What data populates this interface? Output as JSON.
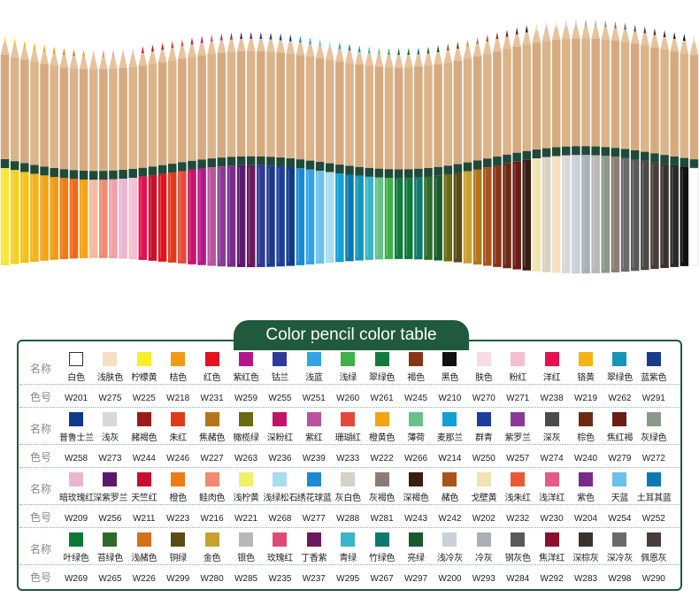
{
  "title": "Color pencil color table",
  "labels": {
    "name": "名称",
    "code": "色号"
  },
  "rows": [
    [
      {
        "name": "白色",
        "code": "W201",
        "color": "#ffffff"
      },
      {
        "name": "浅肤色",
        "code": "W275",
        "color": "#f7dfc0"
      },
      {
        "name": "柠檬黄",
        "code": "W225",
        "color": "#f7ee2a"
      },
      {
        "name": "桔色",
        "code": "W218",
        "color": "#f39a13"
      },
      {
        "name": "红色",
        "code": "W231",
        "color": "#e6101e"
      },
      {
        "name": "紫红色",
        "code": "W259",
        "color": "#b5178a"
      },
      {
        "name": "钴兰",
        "code": "W255",
        "color": "#2d3a9a"
      },
      {
        "name": "浅蓝",
        "code": "W251",
        "color": "#33a3e6"
      },
      {
        "name": "浅绿",
        "code": "W260",
        "color": "#3fb04a"
      },
      {
        "name": "翠绿色",
        "code": "W261",
        "color": "#137a3e"
      },
      {
        "name": "褐色",
        "code": "W245",
        "color": "#8a3417"
      },
      {
        "name": "黑色",
        "code": "W210",
        "color": "#111111"
      },
      {
        "name": "肤色",
        "code": "W270",
        "color": "#f7dce3"
      },
      {
        "name": "粉红",
        "code": "W271",
        "color": "#f5bfd0"
      },
      {
        "name": "洋红",
        "code": "W238",
        "color": "#e4104f"
      },
      {
        "name": "铬黄",
        "code": "W219",
        "color": "#f6b414"
      },
      {
        "name": "翠绿色",
        "code": "W262",
        "color": "#1496b8"
      },
      {
        "name": "蓝紫色",
        "code": "W291",
        "color": "#1c3a8c"
      }
    ],
    [
      {
        "name": "普鲁士兰",
        "code": "W258",
        "color": "#0f3a8a"
      },
      {
        "name": "浅灰",
        "code": "W273",
        "color": "#d8d8d8"
      },
      {
        "name": "赭褐色",
        "code": "W244",
        "color": "#9a1a1a"
      },
      {
        "name": "朱红",
        "code": "W246",
        "color": "#e03a18"
      },
      {
        "name": "焦赭色",
        "code": "W227",
        "color": "#b4761a"
      },
      {
        "name": "橄榄绿",
        "code": "W263",
        "color": "#6a6a12"
      },
      {
        "name": "深粉红",
        "code": "W236",
        "color": "#c41468"
      },
      {
        "name": "紫红",
        "code": "W239",
        "color": "#b8549e"
      },
      {
        "name": "珊瑚红",
        "code": "W233",
        "color": "#e5483a"
      },
      {
        "name": "橙黄色",
        "code": "W222",
        "color": "#f5a316"
      },
      {
        "name": "薄荷",
        "code": "W266",
        "color": "#69c08a"
      },
      {
        "name": "麦那兰",
        "code": "W214",
        "color": "#149fd6"
      },
      {
        "name": "群青",
        "code": "W250",
        "color": "#1d3f9a"
      },
      {
        "name": "紫罗兰",
        "code": "W257",
        "color": "#8a3c94"
      },
      {
        "name": "深灰",
        "code": "W274",
        "color": "#4a4a4a"
      },
      {
        "name": "棕色",
        "code": "W240",
        "color": "#6b2b12"
      },
      {
        "name": "焦红褐",
        "code": "W279",
        "color": "#6b1c14"
      },
      {
        "name": "灰绿色",
        "code": "W272",
        "color": "#8a9a8a"
      }
    ],
    [
      {
        "name": "暗玫瑰红",
        "code": "W209",
        "color": "#eab6cf"
      },
      {
        "name": "深紫罗兰",
        "code": "W256",
        "color": "#5a1a6e"
      },
      {
        "name": "天竺红",
        "code": "W211",
        "color": "#c8102e"
      },
      {
        "name": "橙色",
        "code": "W223",
        "color": "#f07a14"
      },
      {
        "name": "鲑肉色",
        "code": "W216",
        "color": "#f08a72"
      },
      {
        "name": "浅柠黄",
        "code": "W221",
        "color": "#f2f06a"
      },
      {
        "name": "浅绿松石",
        "code": "W268",
        "color": "#a8dcef"
      },
      {
        "name": "绣花球蓝",
        "code": "W277",
        "color": "#1c8ad0"
      },
      {
        "name": "灰白色",
        "code": "W288",
        "color": "#d6d2c8"
      },
      {
        "name": "灰褐色",
        "code": "W281",
        "color": "#8a7e74"
      },
      {
        "name": "深褐色",
        "code": "W243",
        "color": "#3a1c12"
      },
      {
        "name": "赭色",
        "code": "W242",
        "color": "#a8541a"
      },
      {
        "name": "戈壁黄",
        "code": "W202",
        "color": "#f0e4b2"
      },
      {
        "name": "浅朱红",
        "code": "W232",
        "color": "#ea5a32"
      },
      {
        "name": "浅洋红",
        "code": "W230",
        "color": "#e45a8a"
      },
      {
        "name": "紫色",
        "code": "W204",
        "color": "#7a2a8a"
      },
      {
        "name": "天蓝",
        "code": "W254",
        "color": "#6ac2ea"
      },
      {
        "name": "土耳其蓝",
        "code": "W252",
        "color": "#0a7ab0"
      }
    ],
    [
      {
        "name": "叶绿色",
        "code": "W269",
        "color": "#0e7a3a"
      },
      {
        "name": "苔绿色",
        "code": "W265",
        "color": "#2e6a2a"
      },
      {
        "name": "浅赭色",
        "code": "W226",
        "color": "#d4701a"
      },
      {
        "name": "铜绿",
        "code": "W299",
        "color": "#5a4a14"
      },
      {
        "name": "金色",
        "code": "W280",
        "color": "#c8a032"
      },
      {
        "name": "银色",
        "code": "W285",
        "color": "#b8b8b8"
      },
      {
        "name": "玫瑰红",
        "code": "W235",
        "color": "#e04a74"
      },
      {
        "name": "丁香紫",
        "code": "W237",
        "color": "#6a1a5a"
      },
      {
        "name": "青绿",
        "code": "W295",
        "color": "#3ab4c8"
      },
      {
        "name": "竹绿色",
        "code": "W267",
        "color": "#0e7a6a"
      },
      {
        "name": "亮绿",
        "code": "W297",
        "color": "#1a5a2a"
      },
      {
        "name": "浅冷灰",
        "code": "W200",
        "color": "#c8d0d8"
      },
      {
        "name": "冷灰",
        "code": "W293",
        "color": "#a8b0b8"
      },
      {
        "name": "钢灰色",
        "code": "W284",
        "color": "#5a5a5a"
      },
      {
        "name": "焦洋红",
        "code": "W292",
        "color": "#8a1030"
      },
      {
        "name": "深棕灰",
        "code": "W283",
        "color": "#3a3230"
      },
      {
        "name": "深冷灰",
        "code": "W298",
        "color": "#6a6a6e"
      },
      {
        "name": "佩恩灰",
        "code": "W290",
        "color": "#4a3c38"
      }
    ]
  ],
  "pencil_colors": [
    "#f7e63a",
    "#f5d020",
    "#f4c21a",
    "#f3b21a",
    "#f2a418",
    "#f39a13",
    "#f07a14",
    "#ee6a1a",
    "#f5a316",
    "#f5b9a0",
    "#f08a72",
    "#f2a0a8",
    "#eab6cf",
    "#f5bfd0",
    "#e4104f",
    "#c8102e",
    "#e6101e",
    "#e03a18",
    "#e5483a",
    "#c41468",
    "#b5178a",
    "#b8549e",
    "#8a3c94",
    "#7a2a8a",
    "#5a1a6e",
    "#6a1a5a",
    "#2d3a9a",
    "#1c3a8c",
    "#1d3f9a",
    "#0f3a8a",
    "#1c8ad0",
    "#33a3e6",
    "#6ac2ea",
    "#a8dcef",
    "#149fd6",
    "#0a7ab0",
    "#1496b8",
    "#3ab4c8",
    "#69c08a",
    "#3fb04a",
    "#137a3e",
    "#0e7a3a",
    "#0e7a6a",
    "#2e6a2a",
    "#1a5a2a",
    "#6a6a12",
    "#5a4a14",
    "#c8a032",
    "#b4761a",
    "#a8541a",
    "#8a3417",
    "#6b2b12",
    "#6b1c14",
    "#3a1c12",
    "#f0e4b2",
    "#d6d2c8",
    "#f7dfc0",
    "#d8d8d8",
    "#c8d0d8",
    "#a8b0b8",
    "#b8b8b8",
    "#8a9a8a",
    "#8a7e74",
    "#6a6a6e",
    "#5a5a5a",
    "#4a4a4a",
    "#4a3c38",
    "#3a3230",
    "#2a2a2a",
    "#111111",
    "#ffffff"
  ]
}
